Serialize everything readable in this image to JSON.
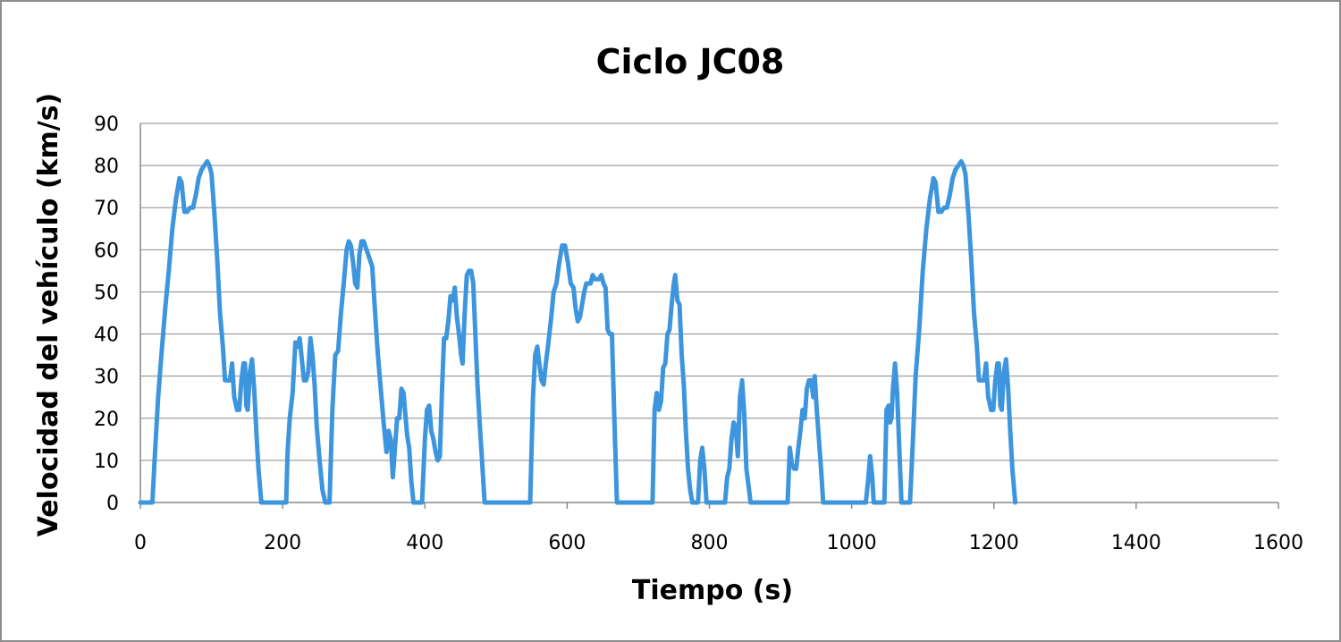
{
  "chart_data": {
    "type": "line",
    "title": "Ciclo JC08",
    "xlabel": "Tiempo (s)",
    "ylabel": "Velocidad del vehículo (km/s)",
    "xlim": [
      0,
      1600
    ],
    "ylim": [
      0,
      90
    ],
    "x_ticks": [
      0,
      200,
      400,
      600,
      800,
      1000,
      1200,
      1400,
      1600
    ],
    "y_ticks": [
      0,
      10,
      20,
      30,
      40,
      50,
      60,
      70,
      80,
      90
    ],
    "grid": "horizontal",
    "line_color": "#3d95dd",
    "series": [
      {
        "points": [
          [
            0,
            0
          ],
          [
            17,
            0
          ],
          [
            20,
            10
          ],
          [
            25,
            25
          ],
          [
            30,
            36
          ],
          [
            35,
            46
          ],
          [
            40,
            55
          ],
          [
            45,
            65
          ],
          [
            50,
            72
          ],
          [
            55,
            77
          ],
          [
            58,
            76
          ],
          [
            62,
            69
          ],
          [
            66,
            69
          ],
          [
            70,
            70
          ],
          [
            74,
            70
          ],
          [
            78,
            73
          ],
          [
            82,
            77
          ],
          [
            86,
            79
          ],
          [
            90,
            80
          ],
          [
            94,
            81
          ],
          [
            97,
            80
          ],
          [
            100,
            78
          ],
          [
            104,
            69
          ],
          [
            108,
            58
          ],
          [
            112,
            45
          ],
          [
            116,
            37
          ],
          [
            119,
            29
          ],
          [
            122,
            29
          ],
          [
            126,
            29
          ],
          [
            129,
            33
          ],
          [
            132,
            25
          ],
          [
            136,
            22
          ],
          [
            139,
            22
          ],
          [
            142,
            29
          ],
          [
            145,
            33
          ],
          [
            147,
            33
          ],
          [
            149,
            23
          ],
          [
            151,
            22
          ],
          [
            154,
            31
          ],
          [
            157,
            34
          ],
          [
            160,
            27
          ],
          [
            163,
            17
          ],
          [
            166,
            8
          ],
          [
            170,
            0
          ],
          [
            205,
            0
          ],
          [
            207,
            12
          ],
          [
            210,
            20
          ],
          [
            214,
            26
          ],
          [
            218,
            38
          ],
          [
            221,
            37
          ],
          [
            224,
            39
          ],
          [
            227,
            34
          ],
          [
            230,
            29
          ],
          [
            233,
            29
          ],
          [
            236,
            31
          ],
          [
            239,
            39
          ],
          [
            242,
            35
          ],
          [
            245,
            28
          ],
          [
            248,
            18
          ],
          [
            252,
            10
          ],
          [
            256,
            3
          ],
          [
            260,
            0
          ],
          [
            266,
            0
          ],
          [
            270,
            22
          ],
          [
            274,
            35
          ],
          [
            278,
            36
          ],
          [
            282,
            45
          ],
          [
            286,
            52
          ],
          [
            290,
            60
          ],
          [
            293,
            62
          ],
          [
            296,
            61
          ],
          [
            299,
            57
          ],
          [
            302,
            52
          ],
          [
            305,
            51
          ],
          [
            308,
            59
          ],
          [
            311,
            62
          ],
          [
            314,
            62
          ],
          [
            318,
            60
          ],
          [
            322,
            58
          ],
          [
            326,
            56
          ],
          [
            330,
            45
          ],
          [
            334,
            35
          ],
          [
            338,
            27
          ],
          [
            342,
            19
          ],
          [
            346,
            12
          ],
          [
            349,
            17
          ],
          [
            352,
            15
          ],
          [
            355,
            6
          ],
          [
            358,
            13
          ],
          [
            361,
            20
          ],
          [
            364,
            20
          ],
          [
            367,
            27
          ],
          [
            370,
            26
          ],
          [
            372,
            22
          ],
          [
            375,
            16
          ],
          [
            378,
            13
          ],
          [
            381,
            5
          ],
          [
            384,
            0
          ],
          [
            396,
            0
          ],
          [
            400,
            15
          ],
          [
            403,
            22
          ],
          [
            406,
            23
          ],
          [
            409,
            17
          ],
          [
            412,
            15
          ],
          [
            415,
            12
          ],
          [
            418,
            10
          ],
          [
            421,
            11
          ],
          [
            424,
            26
          ],
          [
            427,
            39
          ],
          [
            430,
            39
          ],
          [
            433,
            43
          ],
          [
            436,
            49
          ],
          [
            439,
            48
          ],
          [
            442,
            51
          ],
          [
            445,
            44
          ],
          [
            448,
            40
          ],
          [
            451,
            35
          ],
          [
            453,
            33
          ],
          [
            456,
            45
          ],
          [
            459,
            54
          ],
          [
            462,
            55
          ],
          [
            465,
            55
          ],
          [
            468,
            52
          ],
          [
            471,
            40
          ],
          [
            474,
            28
          ],
          [
            477,
            19
          ],
          [
            480,
            11
          ],
          [
            484,
            0
          ],
          [
            548,
            0
          ],
          [
            552,
            25
          ],
          [
            555,
            35
          ],
          [
            558,
            37
          ],
          [
            561,
            33
          ],
          [
            564,
            29
          ],
          [
            567,
            28
          ],
          [
            570,
            33
          ],
          [
            573,
            37
          ],
          [
            577,
            43
          ],
          [
            581,
            50
          ],
          [
            585,
            52
          ],
          [
            589,
            57
          ],
          [
            593,
            61
          ],
          [
            597,
            61
          ],
          [
            601,
            57
          ],
          [
            605,
            52
          ],
          [
            609,
            51
          ],
          [
            612,
            46
          ],
          [
            615,
            43
          ],
          [
            618,
            44
          ],
          [
            621,
            47
          ],
          [
            624,
            50
          ],
          [
            627,
            52
          ],
          [
            630,
            52
          ],
          [
            633,
            52
          ],
          [
            636,
            54
          ],
          [
            639,
            53
          ],
          [
            642,
            53
          ],
          [
            645,
            53
          ],
          [
            648,
            54
          ],
          [
            651,
            52
          ],
          [
            654,
            51
          ],
          [
            657,
            41
          ],
          [
            660,
            40
          ],
          [
            663,
            40
          ],
          [
            666,
            22
          ],
          [
            670,
            0
          ],
          [
            720,
            0
          ],
          [
            723,
            22
          ],
          [
            726,
            26
          ],
          [
            729,
            22
          ],
          [
            732,
            24
          ],
          [
            735,
            32
          ],
          [
            738,
            33
          ],
          [
            741,
            40
          ],
          [
            744,
            41
          ],
          [
            747,
            47
          ],
          [
            750,
            52
          ],
          [
            752,
            54
          ],
          [
            755,
            48
          ],
          [
            758,
            47
          ],
          [
            761,
            35
          ],
          [
            764,
            28
          ],
          [
            767,
            17
          ],
          [
            770,
            8
          ],
          [
            773,
            3
          ],
          [
            776,
            0
          ],
          [
            784,
            0
          ],
          [
            787,
            10
          ],
          [
            790,
            13
          ],
          [
            793,
            8
          ],
          [
            796,
            0
          ],
          [
            822,
            0
          ],
          [
            825,
            6
          ],
          [
            828,
            8
          ],
          [
            831,
            15
          ],
          [
            834,
            19
          ],
          [
            837,
            18
          ],
          [
            840,
            11
          ],
          [
            843,
            25
          ],
          [
            846,
            29
          ],
          [
            849,
            21
          ],
          [
            852,
            8
          ],
          [
            855,
            4
          ],
          [
            858,
            0
          ],
          [
            910,
            0
          ],
          [
            913,
            13
          ],
          [
            916,
            9
          ],
          [
            919,
            8
          ],
          [
            922,
            8
          ],
          [
            925,
            13
          ],
          [
            928,
            17
          ],
          [
            931,
            22
          ],
          [
            934,
            20
          ],
          [
            937,
            27
          ],
          [
            940,
            29
          ],
          [
            943,
            29
          ],
          [
            946,
            25
          ],
          [
            948,
            30
          ],
          [
            951,
            22
          ],
          [
            954,
            15
          ],
          [
            957,
            8
          ],
          [
            960,
            0
          ],
          [
            1020,
            0
          ],
          [
            1023,
            5
          ],
          [
            1026,
            11
          ],
          [
            1029,
            6
          ],
          [
            1031,
            0
          ],
          [
            1046,
            0
          ],
          [
            1049,
            22
          ],
          [
            1052,
            23
          ],
          [
            1054,
            19
          ],
          [
            1056,
            20
          ],
          [
            1058,
            27
          ],
          [
            1061,
            33
          ],
          [
            1064,
            26
          ],
          [
            1067,
            13
          ],
          [
            1070,
            0
          ],
          [
            1082,
            0
          ],
          [
            1086,
            14
          ],
          [
            1090,
            30
          ],
          [
            1095,
            41
          ],
          [
            1100,
            55
          ],
          [
            1105,
            65
          ],
          [
            1110,
            72
          ],
          [
            1115,
            77
          ],
          [
            1118,
            76
          ],
          [
            1122,
            69
          ],
          [
            1126,
            69
          ],
          [
            1130,
            70
          ],
          [
            1134,
            70
          ],
          [
            1138,
            73
          ],
          [
            1142,
            77
          ],
          [
            1146,
            79
          ],
          [
            1150,
            80
          ],
          [
            1154,
            81
          ],
          [
            1157,
            80
          ],
          [
            1160,
            78
          ],
          [
            1164,
            69
          ],
          [
            1168,
            58
          ],
          [
            1172,
            45
          ],
          [
            1176,
            37
          ],
          [
            1179,
            29
          ],
          [
            1182,
            29
          ],
          [
            1186,
            29
          ],
          [
            1189,
            33
          ],
          [
            1192,
            25
          ],
          [
            1196,
            22
          ],
          [
            1199,
            22
          ],
          [
            1202,
            29
          ],
          [
            1205,
            33
          ],
          [
            1207,
            33
          ],
          [
            1209,
            23
          ],
          [
            1211,
            22
          ],
          [
            1214,
            31
          ],
          [
            1217,
            34
          ],
          [
            1220,
            27
          ],
          [
            1223,
            17
          ],
          [
            1226,
            8
          ],
          [
            1230,
            0
          ]
        ]
      }
    ]
  }
}
